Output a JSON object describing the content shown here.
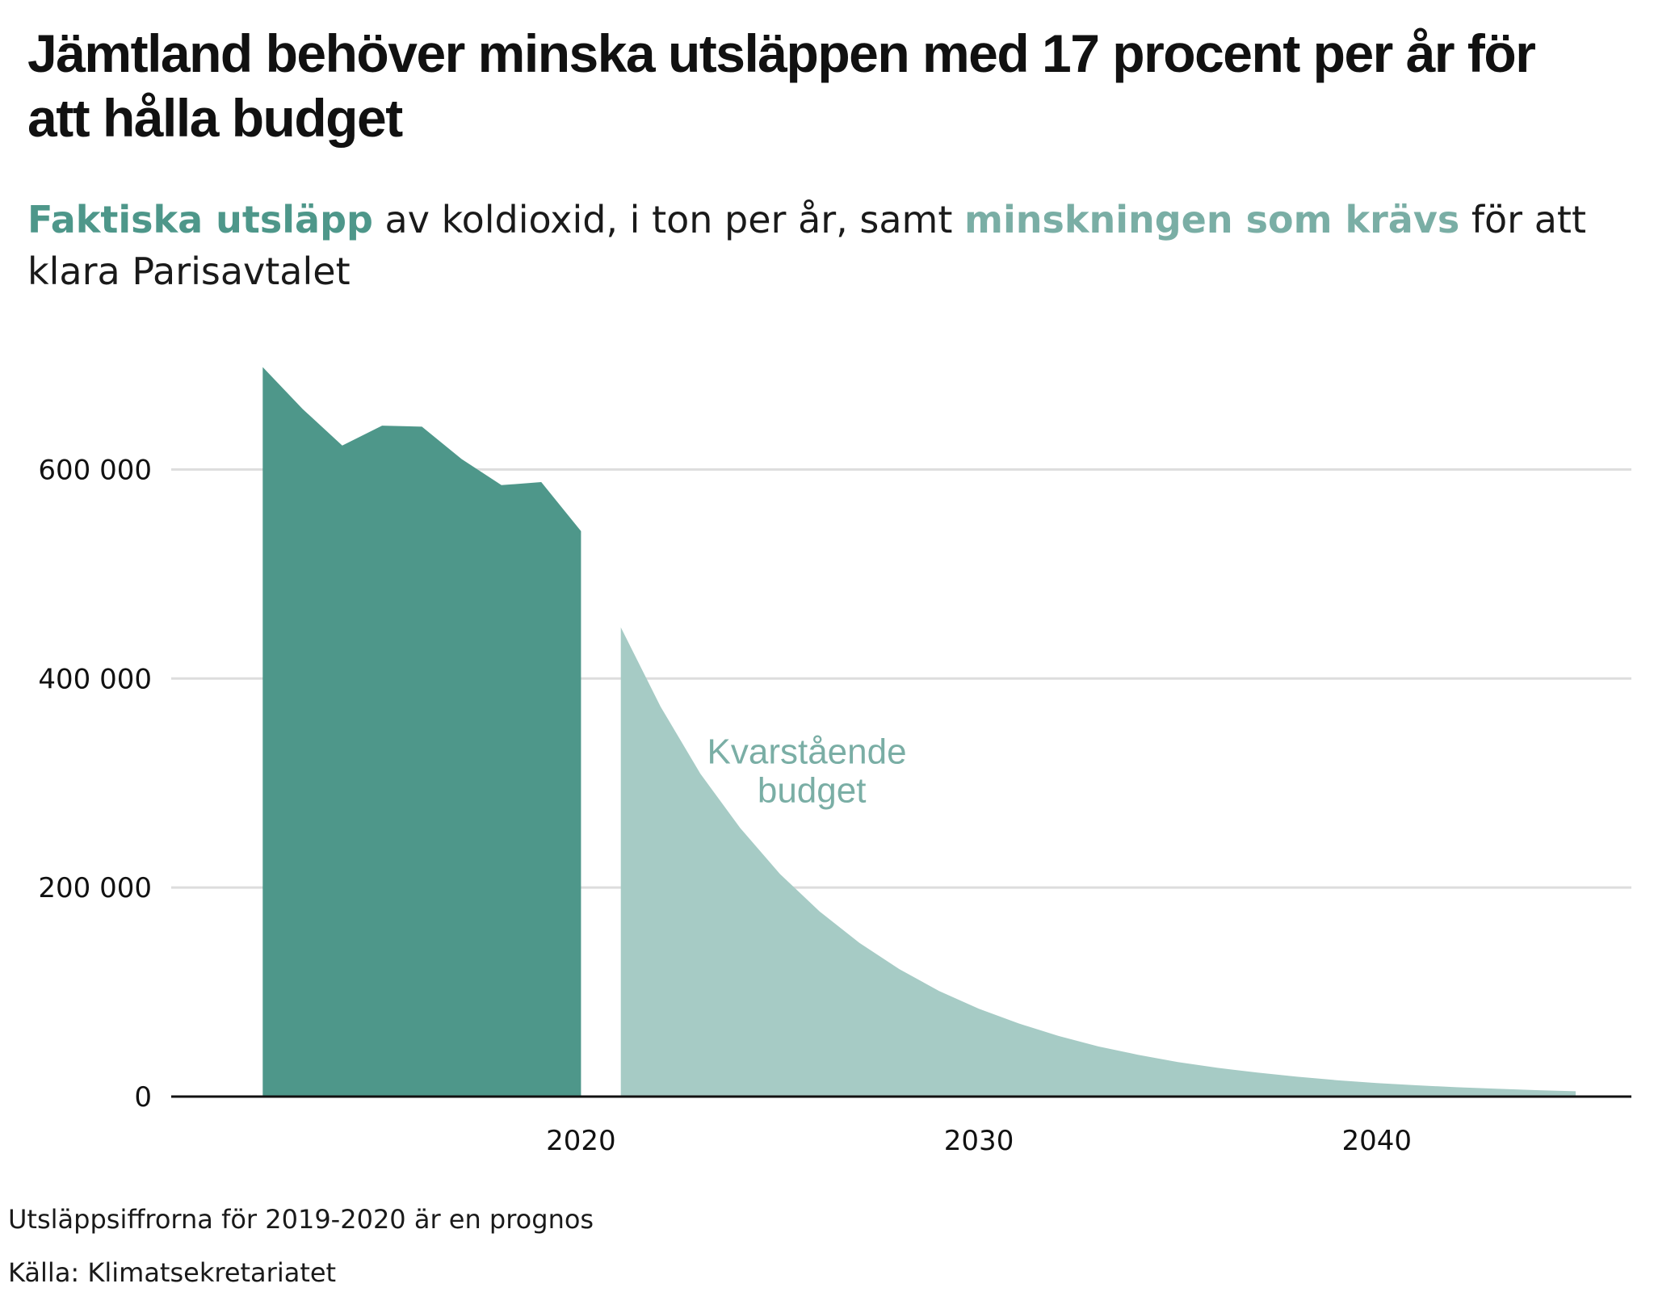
{
  "title": "Jämtland behöver minska utsläppen med 17 procent per år för att hålla budget",
  "subtitle": {
    "highlight_actual": "Faktiska utsläpp",
    "part2": " av koldioxid, i ton per år, samt ",
    "highlight_required": "minskningen som krävs",
    "part4": " för att klara Parisavtalet"
  },
  "colors": {
    "actual": "#4e978a",
    "required": "#a6cbc5",
    "annotation": "#7aaea5",
    "grid": "#dddddd",
    "axis": "#111111"
  },
  "chart_data": {
    "type": "area",
    "ylim": [
      0,
      700000
    ],
    "xlim": [
      2009.7,
      2046.4
    ],
    "yticks": [
      {
        "value": 0,
        "label": "0"
      },
      {
        "value": 200000,
        "label": "200 000"
      },
      {
        "value": 400000,
        "label": "400 000"
      },
      {
        "value": 600000,
        "label": "600 000"
      }
    ],
    "xticks": [
      {
        "value": 2020,
        "label": "2020"
      },
      {
        "value": 2030,
        "label": "2030"
      },
      {
        "value": 2040,
        "label": "2040"
      }
    ],
    "grid": true,
    "series": [
      {
        "key": "actual",
        "x": [
          2012,
          2013,
          2014,
          2015,
          2016,
          2017,
          2018,
          2019,
          2020
        ],
        "y": [
          698000,
          658000,
          623000,
          642000,
          641000,
          610000,
          585000,
          588000,
          541000
        ]
      },
      {
        "key": "required",
        "x": [
          2021,
          2022,
          2023,
          2024,
          2025,
          2026,
          2027,
          2028,
          2029,
          2030,
          2031,
          2032,
          2033,
          2034,
          2035,
          2036,
          2037,
          2038,
          2039,
          2040,
          2041,
          2042,
          2043,
          2044,
          2045
        ],
        "y": [
          449000,
          373000,
          309000,
          257000,
          213000,
          177000,
          147000,
          122000,
          101000,
          84000,
          70000,
          58000,
          48000,
          40000,
          33000,
          27500,
          23000,
          19000,
          15700,
          13000,
          10800,
          9000,
          7500,
          6200,
          5100
        ]
      }
    ],
    "annotation": {
      "text_line1": "Kvarstående",
      "text_line2": "budget",
      "x": 2025.8,
      "y": 300000
    }
  },
  "footnotes": {
    "note": "Utsläppsiffrorna för 2019-2020 är en prognos",
    "source": "Källa: Klimatsekretariatet"
  }
}
